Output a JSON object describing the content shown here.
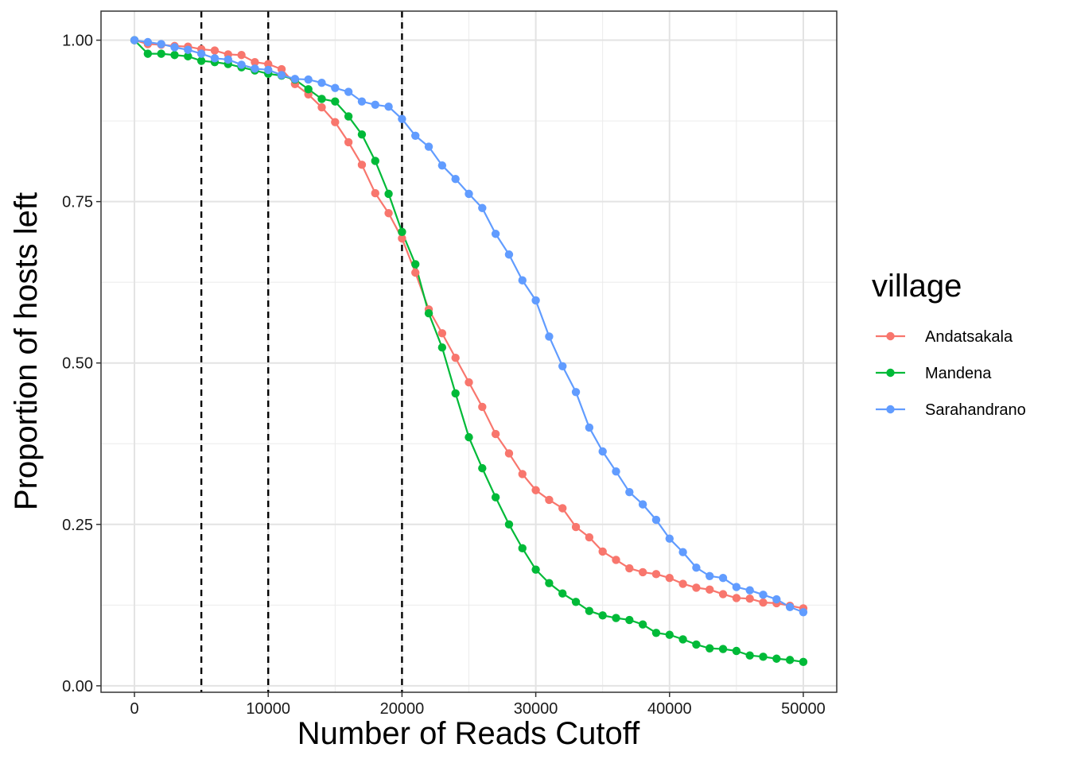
{
  "chart_data": {
    "type": "line",
    "xlabel": "Number of Reads Cutoff",
    "ylabel": "Proportion of hosts left",
    "xlim": [
      -2500,
      52500
    ],
    "ylim": [
      -0.01,
      1.045
    ],
    "x_ticks": [
      0,
      10000,
      20000,
      30000,
      40000,
      50000
    ],
    "x_tick_labels": [
      "0",
      "10000",
      "20000",
      "30000",
      "40000",
      "50000"
    ],
    "y_ticks": [
      0,
      0.25,
      0.5,
      0.75,
      1.0
    ],
    "y_tick_labels": [
      "0.00",
      "0.25",
      "0.50",
      "0.75",
      "1.00"
    ],
    "grid": true,
    "markers": true,
    "legend_title": "village",
    "legend_position": "right",
    "vlines": [
      5000,
      10000,
      20000
    ],
    "vline_style": "dashed",
    "x": [
      0,
      1000,
      2000,
      3000,
      4000,
      5000,
      6000,
      7000,
      8000,
      9000,
      10000,
      11000,
      12000,
      13000,
      14000,
      15000,
      16000,
      17000,
      18000,
      19000,
      20000,
      21000,
      22000,
      23000,
      24000,
      25000,
      26000,
      27000,
      28000,
      29000,
      30000,
      31000,
      32000,
      33000,
      34000,
      35000,
      36000,
      37000,
      38000,
      39000,
      40000,
      41000,
      42000,
      43000,
      44000,
      45000,
      46000,
      47000,
      48000,
      49000,
      50000
    ],
    "series": [
      {
        "name": "Andatsakala",
        "color": "#F8766D",
        "values": [
          1.0,
          0.994,
          0.993,
          0.991,
          0.99,
          0.986,
          0.984,
          0.978,
          0.977,
          0.966,
          0.963,
          0.955,
          0.932,
          0.916,
          0.896,
          0.873,
          0.842,
          0.807,
          0.763,
          0.732,
          0.693,
          0.64,
          0.583,
          0.546,
          0.508,
          0.47,
          0.432,
          0.39,
          0.36,
          0.328,
          0.303,
          0.288,
          0.275,
          0.246,
          0.23,
          0.208,
          0.195,
          0.182,
          0.176,
          0.173,
          0.167,
          0.158,
          0.152,
          0.149,
          0.142,
          0.136,
          0.135,
          0.129,
          0.128,
          0.124,
          0.12
        ]
      },
      {
        "name": "Mandena",
        "color": "#00BA38",
        "values": [
          1.0,
          0.979,
          0.979,
          0.977,
          0.975,
          0.968,
          0.966,
          0.963,
          0.958,
          0.953,
          0.948,
          0.945,
          0.939,
          0.924,
          0.909,
          0.905,
          0.882,
          0.854,
          0.813,
          0.762,
          0.703,
          0.653,
          0.577,
          0.524,
          0.453,
          0.385,
          0.337,
          0.292,
          0.25,
          0.213,
          0.18,
          0.159,
          0.143,
          0.13,
          0.116,
          0.109,
          0.105,
          0.102,
          0.095,
          0.082,
          0.079,
          0.072,
          0.064,
          0.058,
          0.057,
          0.054,
          0.047,
          0.045,
          0.042,
          0.04,
          0.037
        ]
      },
      {
        "name": "Sarahandrano",
        "color": "#619CFF",
        "values": [
          1.0,
          0.997,
          0.994,
          0.989,
          0.985,
          0.979,
          0.972,
          0.97,
          0.962,
          0.956,
          0.954,
          0.946,
          0.94,
          0.939,
          0.934,
          0.926,
          0.92,
          0.905,
          0.9,
          0.897,
          0.878,
          0.852,
          0.835,
          0.806,
          0.785,
          0.762,
          0.74,
          0.7,
          0.668,
          0.628,
          0.597,
          0.541,
          0.495,
          0.455,
          0.4,
          0.363,
          0.332,
          0.3,
          0.281,
          0.257,
          0.228,
          0.207,
          0.183,
          0.17,
          0.167,
          0.153,
          0.148,
          0.141,
          0.134,
          0.122,
          0.114
        ]
      }
    ]
  }
}
